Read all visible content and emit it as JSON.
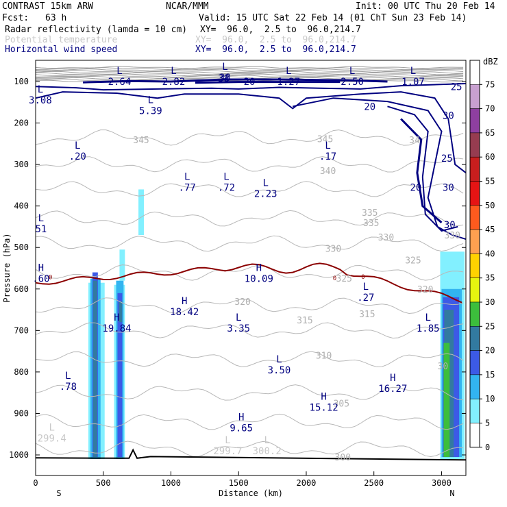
{
  "header": {
    "model": "CONTRAST 15km ARW",
    "org": "NCAR/MMM",
    "init": "Init: 00 UTC Thu 20 Feb 14",
    "fcst_label": "Fcst:",
    "fcst_value": "63 h",
    "valid": "Valid: 15 UTC Sat 22 Feb 14 (01 ChT Sun 23 Feb 14)",
    "fields": [
      {
        "name": "Radar reflectivity (lamda = 10 cm)",
        "xy": "XY=  96.0,  2.5 to  96.0,214.7",
        "color": "#000000"
      },
      {
        "name": "Potential temperature",
        "xy": "XY=  96.0,  2.5 to  96.0,214.7",
        "color": "#c8c8c8"
      },
      {
        "name": "Horizontal wind speed",
        "xy": "XY=  96.0,  2.5 to  96.0,214.7",
        "color": "#000080"
      }
    ]
  },
  "chart_data": {
    "type": "cross-section",
    "xlabel": "Distance (km)",
    "ylabel": "Pressure (hPa)",
    "xlim": [
      0,
      3180
    ],
    "ylim": [
      1050,
      50
    ],
    "xticks": [
      0,
      500,
      1000,
      1500,
      2000,
      2500,
      3000
    ],
    "yticks": [
      100,
      200,
      300,
      400,
      500,
      600,
      700,
      800,
      900,
      1000
    ],
    "end_labels": {
      "left": "S",
      "right": "N"
    },
    "colorbar": {
      "unit": "dBZ",
      "levels": [
        75,
        70,
        65,
        60,
        55,
        50,
        45,
        40,
        35,
        30,
        25,
        20,
        15,
        10,
        5,
        0
      ],
      "colors": [
        "#ffffff",
        "#c8a0d0",
        "#8e3fa0",
        "#963c50",
        "#c81e1e",
        "#e61414",
        "#ff5a1e",
        "#ffa050",
        "#ffd200",
        "#e6f50f",
        "#3cbe3c",
        "#327aa0",
        "#3c5ae6",
        "#32b4f0",
        "#82f0ff",
        "#ffffff"
      ]
    },
    "wind_contour_labels": [
      {
        "text": "25",
        "x": 3110,
        "p": 112
      },
      {
        "text": "20",
        "x": 2470,
        "p": 160
      },
      {
        "text": "30",
        "x": 3050,
        "p": 182
      },
      {
        "text": "25",
        "x": 3040,
        "p": 285
      },
      {
        "text": "20",
        "x": 2810,
        "p": 355
      },
      {
        "text": "30",
        "x": 3050,
        "p": 355
      },
      {
        "text": "30",
        "x": 3060,
        "p": 445
      },
      {
        "text": "20",
        "x": 1580,
        "p": 100
      },
      {
        "text": "38",
        "x": 1390,
        "p": 92
      }
    ],
    "theta_contour_labels": [
      {
        "text": "345",
        "x": 780,
        "p": 240
      },
      {
        "text": "345",
        "x": 2140,
        "p": 238
      },
      {
        "text": "34",
        "x": 2800,
        "p": 240
      },
      {
        "text": "340",
        "x": 2160,
        "p": 315
      },
      {
        "text": "335",
        "x": 2470,
        "p": 415
      },
      {
        "text": "335",
        "x": 2480,
        "p": 440
      },
      {
        "text": "330",
        "x": 2590,
        "p": 475
      },
      {
        "text": "330",
        "x": 2200,
        "p": 502
      },
      {
        "text": "325",
        "x": 2790,
        "p": 530
      },
      {
        "text": "325",
        "x": 2280,
        "p": 574
      },
      {
        "text": "320",
        "x": 2880,
        "p": 600
      },
      {
        "text": "320",
        "x": 1530,
        "p": 630
      },
      {
        "text": "315",
        "x": 1990,
        "p": 675
      },
      {
        "text": "315",
        "x": 2450,
        "p": 660
      },
      {
        "text": "310",
        "x": 2130,
        "p": 760
      },
      {
        "text": "305",
        "x": 2260,
        "p": 875
      },
      {
        "text": "300",
        "x": 2270,
        "p": 1005
      },
      {
        "text": "30",
        "x": 3010,
        "p": 785
      },
      {
        "text": "330",
        "x": 3080,
        "p": 470
      }
    ],
    "pressure_centers": [
      {
        "type": "L",
        "value": "2.64",
        "x": 620,
        "p": 85,
        "color": "#000080"
      },
      {
        "type": "L",
        "value": "2.82",
        "x": 1020,
        "p": 85,
        "color": "#000080"
      },
      {
        "type": "L",
        "value": "38",
        "x": 1400,
        "p": 75,
        "color": "#000080"
      },
      {
        "type": "L",
        "value": "1.27",
        "x": 1870,
        "p": 85,
        "color": "#000080"
      },
      {
        "type": "L",
        "value": "2.50",
        "x": 2340,
        "p": 85,
        "color": "#000080"
      },
      {
        "type": "L",
        "value": "1.07",
        "x": 2790,
        "p": 85,
        "color": "#000080"
      },
      {
        "type": "L",
        "value": "3.08",
        "x": 35,
        "p": 130,
        "color": "#000080"
      },
      {
        "type": "L",
        "value": "5.39",
        "x": 850,
        "p": 155,
        "color": "#000080"
      },
      {
        "type": "L",
        "value": ".20",
        "x": 310,
        "p": 265,
        "color": "#000080"
      },
      {
        "type": "L",
        "value": ".17",
        "x": 2160,
        "p": 265,
        "color": "#000080"
      },
      {
        "type": "L",
        "value": ".77",
        "x": 1120,
        "p": 340,
        "color": "#000080"
      },
      {
        "type": "L",
        "value": ".72",
        "x": 1410,
        "p": 340,
        "color": "#000080"
      },
      {
        "type": "L",
        "value": "2.23",
        "x": 1700,
        "p": 355,
        "color": "#000080"
      },
      {
        "type": "H",
        "value": "10.09",
        "x": 1650,
        "p": 560,
        "color": "#000080"
      },
      {
        "type": "L",
        "value": ".27",
        "x": 2440,
        "p": 605,
        "color": "#000080"
      },
      {
        "type": "H",
        "value": "18.42",
        "x": 1100,
        "p": 640,
        "color": "#000080"
      },
      {
        "type": "H",
        "value": "19.84",
        "x": 600,
        "p": 680,
        "color": "#000080"
      },
      {
        "type": "L",
        "value": "3.35",
        "x": 1500,
        "p": 680,
        "color": "#000080"
      },
      {
        "type": "L",
        "value": "1.85",
        "x": 2900,
        "p": 680,
        "color": "#000080"
      },
      {
        "type": "L",
        "value": "3.50",
        "x": 1800,
        "p": 780,
        "color": "#000080"
      },
      {
        "type": "L",
        "value": ".78",
        "x": 240,
        "p": 820,
        "color": "#000080"
      },
      {
        "type": "H",
        "value": "16.27",
        "x": 2640,
        "p": 825,
        "color": "#000080"
      },
      {
        "type": "H",
        "value": "15.12",
        "x": 2130,
        "p": 870,
        "color": "#000080"
      },
      {
        "type": "H",
        "value": "9.65",
        "x": 1520,
        "p": 920,
        "color": "#000080"
      },
      {
        "type": "L",
        "value": "299.4",
        "x": 120,
        "p": 945,
        "color": "#c8c8c8"
      },
      {
        "type": "L",
        "value": "299.7",
        "x": 1420,
        "p": 975,
        "color": "#c8c8c8"
      },
      {
        "type": "L",
        "value": "300.2",
        "x": 1710,
        "p": 975,
        "color": "#c8c8c8"
      },
      {
        "type": "H",
        "value": ".60",
        "x": 40,
        "p": 560,
        "color": "#000080"
      },
      {
        "type": "L",
        "value": "51",
        "x": 40,
        "p": 440,
        "color": "#000080"
      }
    ],
    "tropopause_line": {
      "color": "#8b0000",
      "label": "0"
    },
    "ground_line_color": "#000000"
  }
}
